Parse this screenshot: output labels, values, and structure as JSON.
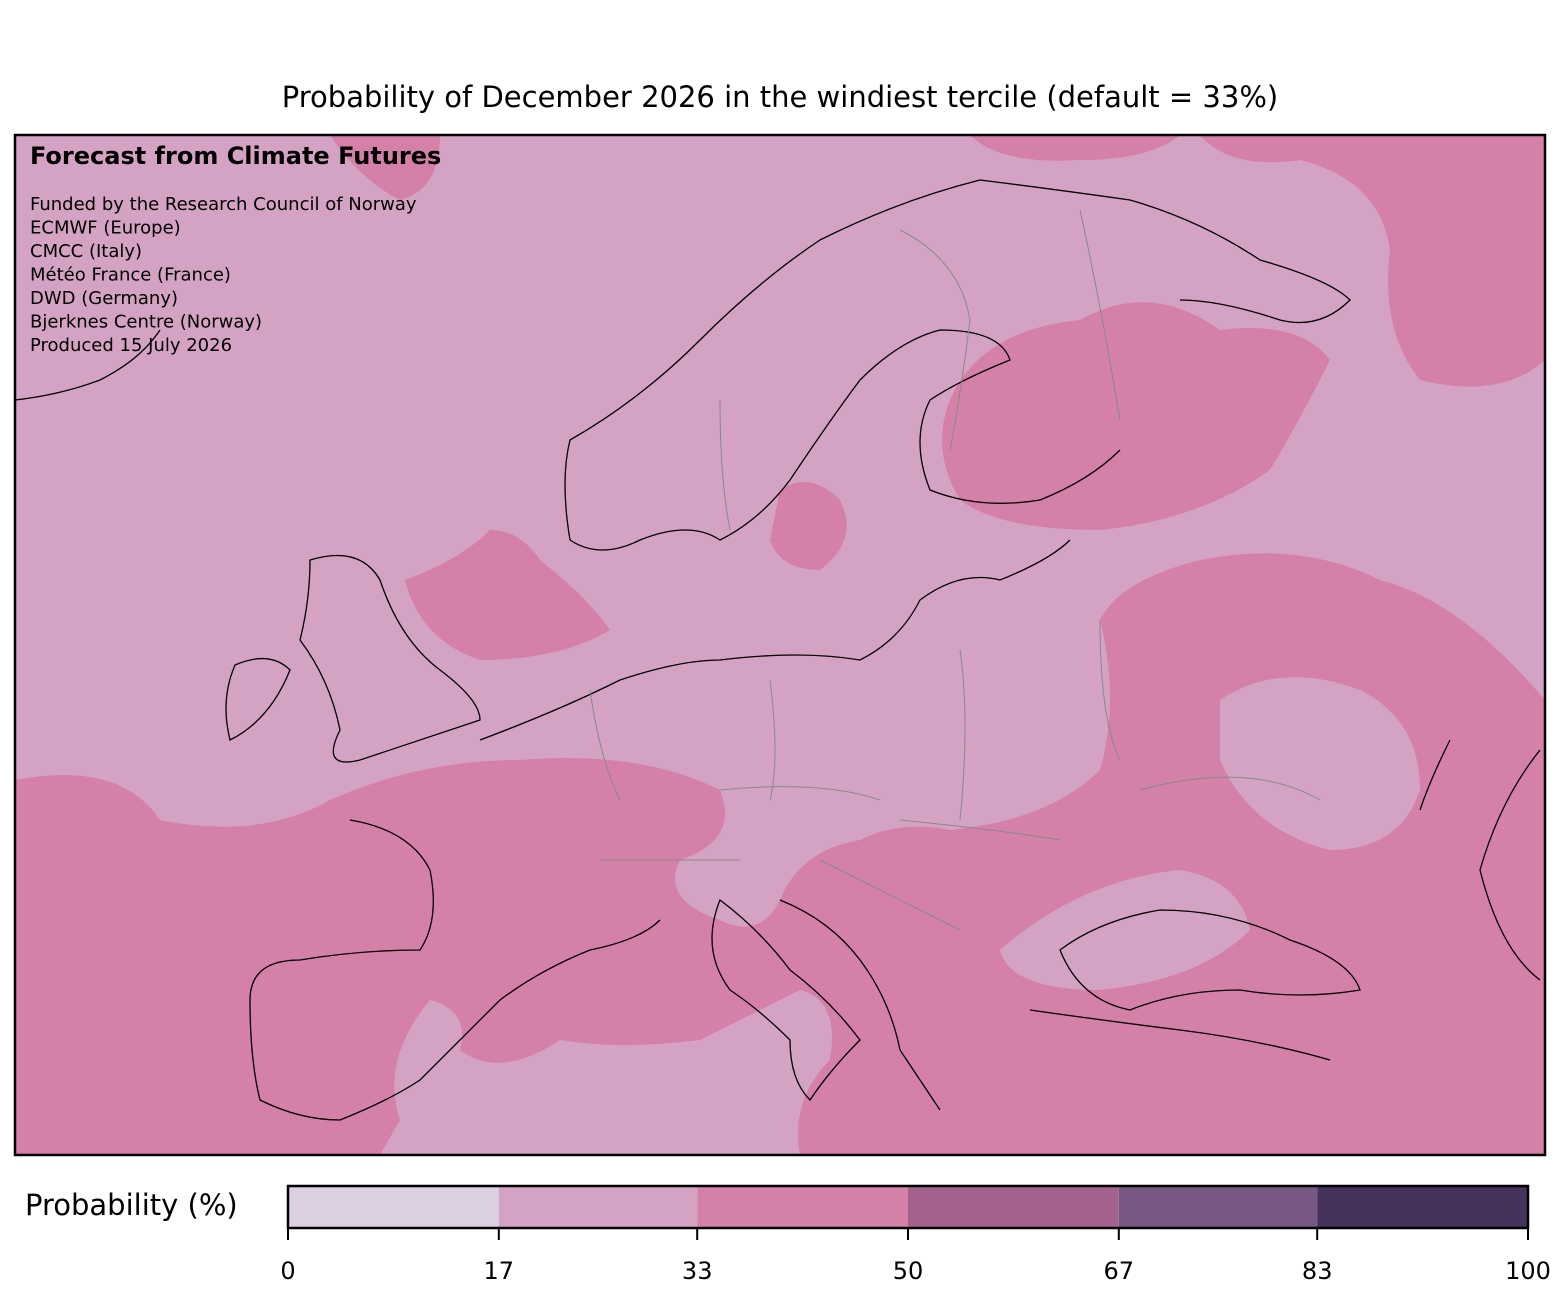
{
  "title": "Probability of December 2026 in the windiest tercile (default = 33%)",
  "annotations": {
    "heading": "Forecast from Climate Futures",
    "lines": [
      "Funded by the Research Council of Norway",
      "ECMWF (Europe)",
      "CMCC (Italy)",
      "Météo France (France)",
      "DWD (Germany)",
      "Bjerknes Centre (Norway)",
      "Produced 15 July 2026"
    ]
  },
  "colorbar": {
    "label": "Probability (%)",
    "xlim": [
      0,
      100
    ],
    "xticks": [
      0,
      17,
      33,
      50,
      67,
      83,
      100
    ],
    "colors": [
      "#dccfe0",
      "#d4a3c3",
      "#d480a9",
      "#a6628f",
      "#775882",
      "#45335d"
    ]
  }
}
